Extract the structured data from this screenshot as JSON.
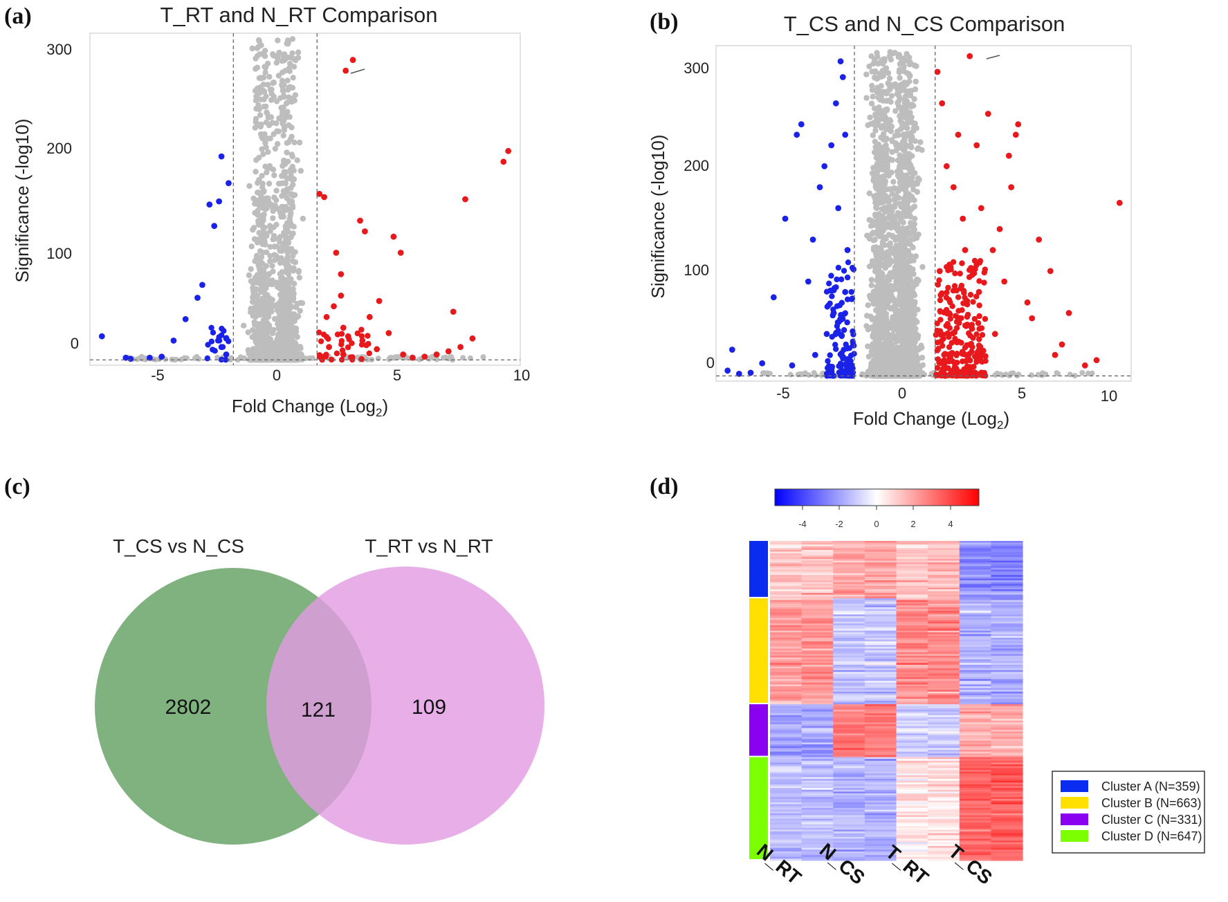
{
  "panels": {
    "a": {
      "label": "(a)",
      "title": "T_RT and N_RT Comparison",
      "ylabel": "Significance (-log10)",
      "xlabel": "Fold Change (Log",
      "xlabel_sub": "2",
      "xlabel_end": ")",
      "yticks": [
        "0",
        "100",
        "200",
        "300"
      ],
      "xticks": [
        "-5",
        "0",
        "5",
        "10"
      ]
    },
    "b": {
      "label": "(b)",
      "title": "T_CS and N_CS Comparison",
      "ylabel": "Significance (-log10)",
      "xlabel": "Fold Change (Log",
      "xlabel_sub": "2",
      "xlabel_end": ")",
      "yticks": [
        "0",
        "100",
        "200",
        "300"
      ],
      "xticks": [
        "-5",
        "0",
        "5",
        "10"
      ]
    },
    "c": {
      "label": "(c)",
      "left_set": "T_CS vs N_CS",
      "right_set": "T_RT vs N_RT",
      "left_only": "2802",
      "overlap": "121",
      "right_only": "109"
    },
    "d": {
      "label": "(d)",
      "colorbar_ticks": [
        "-4",
        "-2",
        "0",
        "2",
        "4"
      ],
      "columns": [
        "N_RT",
        "N_CS",
        "T_RT",
        "T_CS"
      ]
    }
  },
  "legend": [
    {
      "name": "Cluster A (N=359)",
      "color": "#0a2cf0"
    },
    {
      "name": "Cluster B (N=663)",
      "color": "#ffe000"
    },
    {
      "name": "Cluster C (N=331)",
      "color": "#8a00f0"
    },
    {
      "name": "Cluster D (N=647)",
      "color": "#7cff00"
    }
  ],
  "colors": {
    "up": "#e8191c",
    "down": "#1a22e8",
    "ns": "#bdbdbd",
    "venn_left": "#6aa56a",
    "venn_right": "#e29ae2"
  },
  "chart_data": [
    {
      "type": "scatter",
      "title": "T_RT and N_RT Comparison",
      "xlabel": "Fold Change (Log2)",
      "ylabel": "Significance (-log10)",
      "xlim": [
        -7.5,
        10.5
      ],
      "ylim": [
        -5,
        305
      ],
      "thresholds": {
        "x": [
          -1.5,
          2
        ],
        "y": 0
      },
      "series": [
        {
          "key": "down",
          "x": [
            -7,
            -6,
            -5.8,
            -5,
            -4.5,
            -4,
            -3.5,
            -3,
            -2.8,
            -2.5,
            -2.3,
            -2,
            -2,
            -1.8,
            -1.8,
            -1.7,
            -2.1
          ],
          "y": [
            22,
            2,
            1,
            2,
            3,
            18,
            38,
            58,
            70,
            145,
            125,
            190,
            12,
            5,
            20,
            165,
            148
          ]
        },
        {
          "key": "up",
          "x": [
            2.1,
            2.3,
            2.5,
            2.8,
            3,
            3.1,
            3.2,
            3.5,
            3.8,
            4,
            4.2,
            4.5,
            5,
            5.2,
            5.5,
            5.6,
            6,
            6.5,
            7,
            7.5,
            7.7,
            8,
            8.2,
            8.5,
            9.8,
            10,
            3.0,
            3.1,
            2.4,
            3.3,
            2.7,
            4.6,
            3.9
          ],
          "y": [
            155,
            152,
            12,
            100,
            80,
            5,
            270,
            280,
            130,
            120,
            40,
            10,
            25,
            115,
            100,
            5,
            2,
            3,
            5,
            8,
            45,
            12,
            150,
            20,
            185,
            195,
            60,
            30,
            40,
            22,
            50,
            55,
            18
          ]
        }
      ]
    },
    {
      "type": "scatter",
      "title": "T_CS and N_CS Comparison",
      "xlabel": "Fold Change (Log2)",
      "ylabel": "Significance (-log10)",
      "xlim": [
        -7.5,
        10.5
      ],
      "ylim": [
        -5,
        315
      ],
      "thresholds": {
        "x": [
          -1.5,
          2
        ],
        "y": 0
      },
      "series": [
        {
          "key": "down",
          "x": [
            -7,
            -6.8,
            -6.5,
            -6,
            -5,
            -4.5,
            -4,
            -3.8,
            -3.5,
            -3.3,
            -3,
            -2.8,
            -2.5,
            -2.3,
            -2.1,
            -2,
            -1.9,
            -1.8,
            -2.4,
            -2.7,
            -3.2,
            -4.2,
            -5.5,
            -1.9,
            -2.2
          ],
          "y": [
            5,
            25,
            2,
            3,
            75,
            150,
            230,
            240,
            90,
            130,
            180,
            200,
            220,
            260,
            300,
            285,
            230,
            120,
            60,
            40,
            20,
            10,
            12,
            80,
            160
          ]
        },
        {
          "key": "up",
          "x": [
            2.1,
            2.3,
            2.5,
            2.8,
            3,
            3.2,
            3.5,
            3.8,
            4,
            4.3,
            4.5,
            4.8,
            5,
            5.3,
            5.6,
            6,
            6.5,
            7,
            7.5,
            7.8,
            8.5,
            9,
            10,
            2.2,
            2.6,
            3.3,
            3.9,
            4.6,
            5.2,
            6.2,
            7.2,
            2.4,
            3.6,
            5.5
          ],
          "y": [
            290,
            260,
            200,
            180,
            230,
            150,
            305,
            220,
            160,
            250,
            120,
            140,
            90,
            180,
            240,
            70,
            130,
            100,
            30,
            60,
            10,
            15,
            165,
            100,
            60,
            120,
            80,
            40,
            210,
            55,
            20,
            15,
            45,
            230
          ]
        }
      ]
    },
    {
      "type": "venn",
      "sets": [
        "T_CS vs N_CS",
        "T_RT vs N_RT"
      ],
      "values": {
        "T_CS vs N_CS only": 2802,
        "both": 121,
        "T_RT vs N_RT only": 109
      }
    },
    {
      "type": "heatmap",
      "columns": [
        "N_RT",
        "N_CS",
        "T_RT",
        "T_CS"
      ],
      "colorbar": {
        "min": -5,
        "max": 5,
        "ticks": [
          -4,
          -2,
          0,
          2,
          4
        ],
        "colors": [
          "#0000ff",
          "#ffffff",
          "#ff0000"
        ]
      },
      "clusters": [
        {
          "name": "Cluster A",
          "n": 359,
          "mean": [
            1.2,
            1.8,
            1.3,
            -2.2
          ]
        },
        {
          "name": "Cluster B",
          "n": 663,
          "mean": [
            2.0,
            -1.2,
            2.2,
            -1.6
          ]
        },
        {
          "name": "Cluster C",
          "n": 331,
          "mean": [
            -1.8,
            2.6,
            -1.0,
            1.6
          ]
        },
        {
          "name": "Cluster D",
          "n": 647,
          "mean": [
            -1.3,
            -1.5,
            0.5,
            3.0
          ]
        }
      ]
    }
  ]
}
